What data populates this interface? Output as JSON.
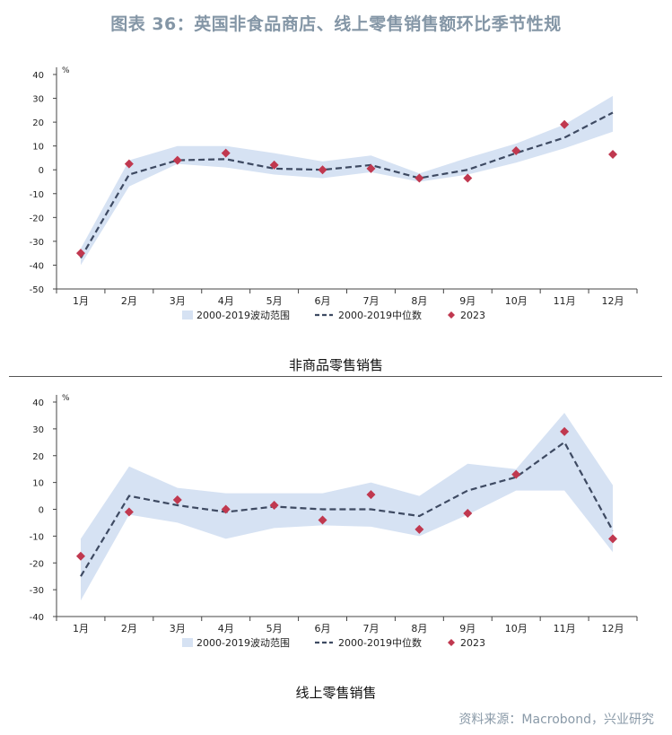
{
  "figure_title": "图表 36：英国非食品商店、线上零售销售额环比季节性规",
  "source": "资料来源：Macrobond，兴业研究",
  "chart_data": [
    {
      "type": "line",
      "title": "非商品零售销售",
      "unit_label": "%",
      "categories": [
        "1月",
        "2月",
        "3月",
        "4月",
        "5月",
        "6月",
        "7月",
        "8月",
        "9月",
        "10月",
        "11月",
        "12月"
      ],
      "ylim": [
        -50,
        40
      ],
      "yticks": [
        40,
        30,
        20,
        10,
        0,
        -10,
        -20,
        -30,
        -40,
        -50
      ],
      "legend": [
        "2000-2019波动范围",
        "2000-2019中位数",
        "2023"
      ],
      "legend_position": "bottom",
      "series": [
        {
          "name": "2000-2019波动范围",
          "kind": "band",
          "low": [
            -40,
            -7,
            2.5,
            1,
            -2,
            -3.5,
            -1,
            -5,
            -2,
            3,
            9,
            16
          ],
          "high": [
            -33,
            4,
            10,
            10,
            7,
            3.5,
            6,
            -1.5,
            5,
            11,
            19,
            31
          ]
        },
        {
          "name": "2000-2019中位数",
          "kind": "line",
          "values": [
            -37,
            -2,
            4,
            4.5,
            0.5,
            0,
            2,
            -3.5,
            0,
            7,
            13.5,
            24
          ]
        },
        {
          "name": "2023",
          "kind": "scatter",
          "values": [
            -35,
            2.5,
            4,
            7,
            2,
            0,
            0.5,
            -3.5,
            -3.5,
            8,
            19,
            6.5
          ]
        }
      ]
    },
    {
      "type": "line",
      "title": "线上零售销售",
      "unit_label": "%",
      "categories": [
        "1月",
        "2月",
        "3月",
        "4月",
        "5月",
        "6月",
        "7月",
        "8月",
        "9月",
        "10月",
        "11月",
        "12月"
      ],
      "ylim": [
        -40,
        40
      ],
      "yticks": [
        40,
        30,
        20,
        10,
        0,
        -10,
        -20,
        -30,
        -40
      ],
      "legend": [
        "2000-2019波动范围",
        "2000-2019中位数",
        "2023"
      ],
      "legend_position": "bottom",
      "series": [
        {
          "name": "2000-2019波动范围",
          "kind": "band",
          "low": [
            -34,
            -2,
            -5,
            -11,
            -7,
            -6,
            -6.5,
            -10,
            -2,
            7,
            7,
            -16
          ],
          "high": [
            -11,
            16,
            8,
            6,
            6,
            6,
            10,
            5,
            17,
            15,
            36,
            9
          ]
        },
        {
          "name": "2000-2019中位数",
          "kind": "line",
          "values": [
            -25,
            5,
            1.5,
            -1,
            1,
            0,
            0,
            -2.5,
            7,
            12,
            25,
            -8
          ]
        },
        {
          "name": "2023",
          "kind": "scatter",
          "values": [
            -17.5,
            -1,
            3.5,
            0,
            1.5,
            -4,
            5.5,
            -7.5,
            -1.5,
            13,
            29,
            -11
          ]
        }
      ]
    }
  ],
  "colors": {
    "band": "#d6e2f3",
    "median": "#3e4a62",
    "point": "#c0384f",
    "axis": "#444444"
  }
}
